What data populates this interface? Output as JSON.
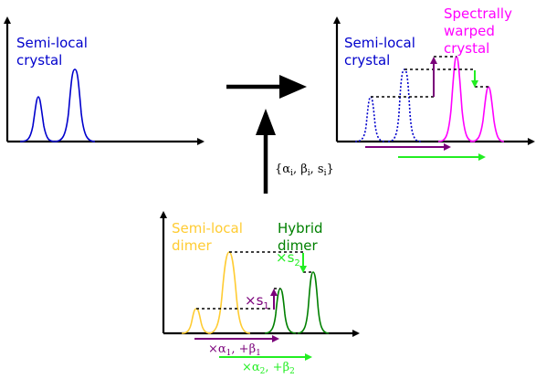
{
  "colors": {
    "axis": "#000000",
    "semi_local": "#0000cc",
    "warped": "#ff00ff",
    "dimer_semi_local": "#ffcc33",
    "dimer_hybrid": "#008000",
    "scale_arrow": "#7a007a",
    "shift_arrow": "#22ee22"
  },
  "panels": {
    "top_left": {
      "label_line1": "Semi-local",
      "label_line2": "crystal"
    },
    "top_right": {
      "label_line1": "Semi-local",
      "label_line2": "crystal",
      "warped_line1": "Spectrally",
      "warped_line2": "warped",
      "warped_line3": "crystal"
    },
    "bottom": {
      "semi_line1": "Semi-local",
      "semi_line2": "dimer",
      "hybrid_line1": "Hybrid",
      "hybrid_line2": "dimer",
      "s1_times": "×s",
      "s1_sub": "1",
      "s2_times": "×s",
      "s2_sub": "2",
      "formula1": {
        "a_pre": "×α",
        "a_sub": "1",
        "b_pre": ", +β",
        "b_sub": "1"
      },
      "formula2": {
        "a_pre": "×α",
        "a_sub": "2",
        "b_pre": ", +β",
        "b_sub": "2"
      }
    }
  },
  "params_label": {
    "open": "{α",
    "sub_a": "i",
    "mid1": ", β",
    "sub_b": "i",
    "mid2": ", s",
    "sub_s": "i",
    "close": "}"
  },
  "icons": [
    "right-arrow-icon",
    "up-arrow-icon"
  ]
}
